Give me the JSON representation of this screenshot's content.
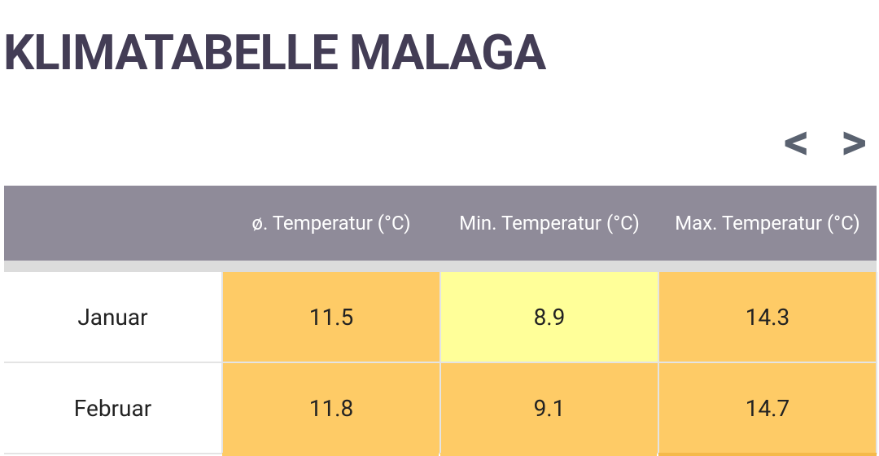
{
  "header": {
    "title": "KLIMATABELLE MALAGA",
    "nav": {
      "prev": "<",
      "next": ">"
    }
  },
  "table": {
    "columns": [
      "ø. Temperatur (°C)",
      "Min. Temperatur (°C)",
      "Max. Temperatur (°C)"
    ],
    "rows": [
      [
        "Januar",
        11.5,
        8.9,
        14.3
      ],
      [
        "Februar",
        11.8,
        9.1,
        14.7
      ]
    ]
  }
}
